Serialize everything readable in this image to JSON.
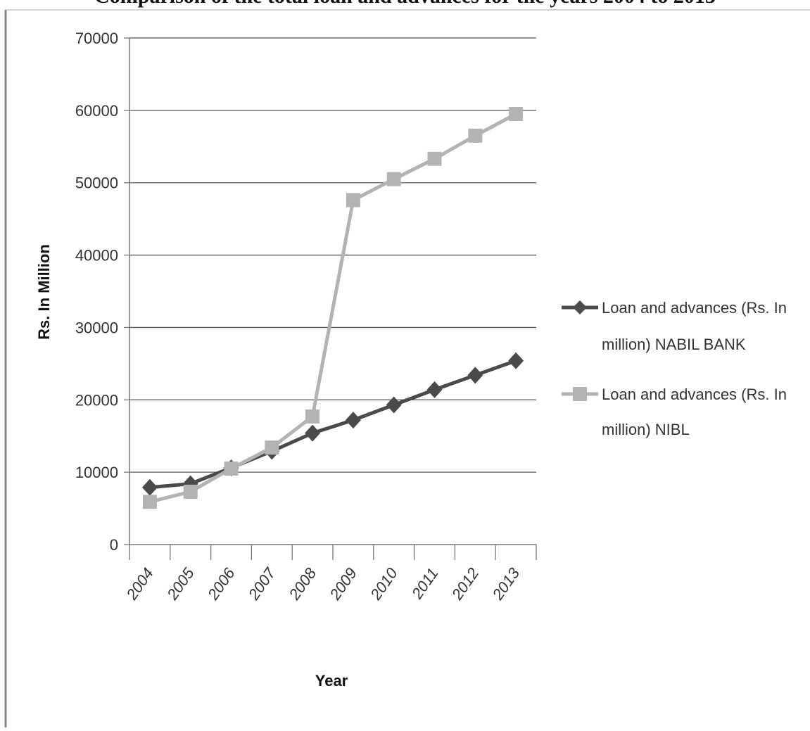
{
  "caption": "Comparison of the total loan and advances for the years 2004 to 2013",
  "chart_data": {
    "type": "line",
    "title": "",
    "xlabel": "Year",
    "ylabel": "Rs. In Million",
    "ylim": [
      0,
      70000
    ],
    "yticks": [
      0,
      10000,
      20000,
      30000,
      40000,
      50000,
      60000,
      70000
    ],
    "categories": [
      "2004",
      "2005",
      "2006",
      "2007",
      "2008",
      "2009",
      "2010",
      "2011",
      "2012",
      "2013"
    ],
    "grid": "horizontal",
    "legend_position": "right",
    "series": [
      {
        "name_line1": "Loan and advances (Rs. In",
        "name_line2": "million) NABIL BANK",
        "marker": "diamond",
        "color": "#4a4a4a",
        "values": [
          7900,
          8400,
          10600,
          12900,
          15400,
          17200,
          19300,
          21400,
          23400,
          25400
        ]
      },
      {
        "name_line1": "Loan and advances (Rs. In",
        "name_line2": "million) NIBL",
        "marker": "square",
        "color": "#b3b3b3",
        "values": [
          5900,
          7300,
          10500,
          13400,
          17700,
          47600,
          50500,
          53300,
          56500,
          59500
        ]
      }
    ]
  }
}
